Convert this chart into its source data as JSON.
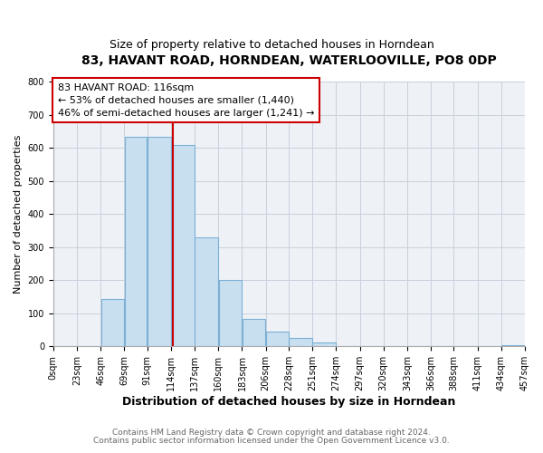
{
  "title": "83, HAVANT ROAD, HORNDEAN, WATERLOOVILLE, PO8 0DP",
  "subtitle": "Size of property relative to detached houses in Horndean",
  "xlabel": "Distribution of detached houses by size in Horndean",
  "ylabel": "Number of detached properties",
  "bin_edges": [
    0,
    23,
    46,
    69,
    91,
    114,
    137,
    160,
    183,
    206,
    228,
    251,
    274,
    297,
    320,
    343,
    366,
    388,
    411,
    434,
    457
  ],
  "bar_heights": [
    2,
    0,
    143,
    634,
    633,
    609,
    331,
    200,
    84,
    46,
    26,
    12,
    0,
    0,
    0,
    0,
    0,
    0,
    0,
    3
  ],
  "tick_labels": [
    "0sqm",
    "23sqm",
    "46sqm",
    "69sqm",
    "91sqm",
    "114sqm",
    "137sqm",
    "160sqm",
    "183sqm",
    "206sqm",
    "228sqm",
    "251sqm",
    "274sqm",
    "297sqm",
    "320sqm",
    "343sqm",
    "366sqm",
    "388sqm",
    "411sqm",
    "434sqm",
    "457sqm"
  ],
  "bar_color": "#c8dff0",
  "bar_edge_color": "#7bafd4",
  "vline_x": 116,
  "vline_color": "#cc0000",
  "ylim": [
    0,
    800
  ],
  "yticks": [
    0,
    100,
    200,
    300,
    400,
    500,
    600,
    700,
    800
  ],
  "annotation_title": "83 HAVANT ROAD: 116sqm",
  "annotation_line1": "← 53% of detached houses are smaller (1,440)",
  "annotation_line2": "46% of semi-detached houses are larger (1,241) →",
  "box_edge_color": "#cc0000",
  "footer_line1": "Contains HM Land Registry data © Crown copyright and database right 2024.",
  "footer_line2": "Contains public sector information licensed under the Open Government Licence v3.0.",
  "bg_color": "#ffffff",
  "plot_bg_color": "#eef2f7",
  "grid_color": "#c8d0dc",
  "title_fontsize": 10,
  "subtitle_fontsize": 9,
  "ylabel_fontsize": 8,
  "xlabel_fontsize": 9,
  "tick_fontsize": 7,
  "footer_fontsize": 6.5,
  "annotation_fontsize": 8
}
